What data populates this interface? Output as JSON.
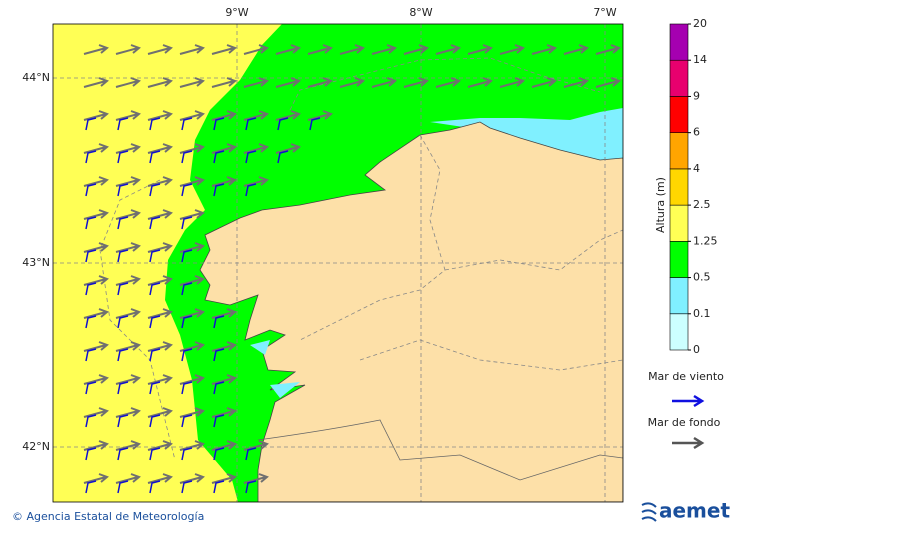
{
  "map": {
    "longitude_labels": [
      "9°W",
      "8°W",
      "7°W"
    ],
    "latitude_labels": [
      "44°N",
      "43°N",
      "42°N"
    ]
  },
  "colorbar": {
    "title": "Altura (m)",
    "labels": [
      "0",
      "0.1",
      "0.5",
      "1.25",
      "2.5",
      "4",
      "6",
      "9",
      "14",
      "20"
    ],
    "colors": [
      "#ccffff",
      "#80f0ff",
      "#00ff00",
      "#ffff55",
      "#ffd700",
      "#ffa500",
      "#ff0000",
      "#e8006e",
      "#a500b0"
    ]
  },
  "legend": {
    "wind_sea": "Mar de viento",
    "swell": "Mar de fondo"
  },
  "footer": {
    "credit": "© Agencia Estatal de Meteorología",
    "logo": "aemet"
  }
}
